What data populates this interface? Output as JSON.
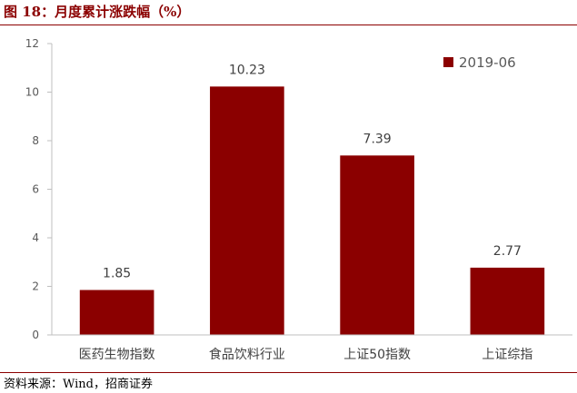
{
  "header": {
    "title": "图 18：月度累计涨跌幅（%）"
  },
  "footer": {
    "source": "资料来源：Wind，招商证券"
  },
  "colors": {
    "accent": "#8B0000",
    "bar": "#8B0000"
  },
  "chart_data": {
    "type": "bar",
    "title": "",
    "xlabel": "",
    "ylabel": "",
    "categories": [
      "医药生物指数",
      "食品饮料行业",
      "上证50指数",
      "上证综指"
    ],
    "series": [
      {
        "name": "2019-06",
        "values": [
          1.85,
          10.23,
          7.39,
          2.77
        ]
      }
    ],
    "data_labels": [
      "1.85",
      "10.23",
      "7.39",
      "2.77"
    ],
    "ylim": [
      0,
      12
    ],
    "yticks": [
      0,
      2,
      4,
      6,
      8,
      10,
      12
    ],
    "grid": false,
    "legend": "top-right"
  }
}
